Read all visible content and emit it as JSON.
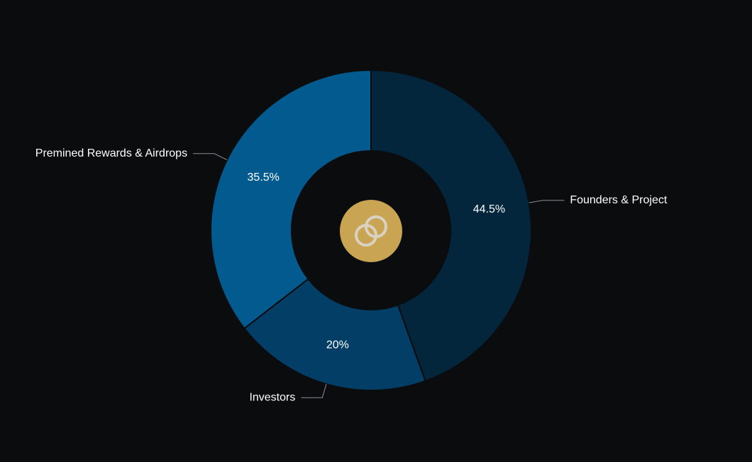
{
  "chart_data": {
    "type": "pie",
    "categories": [
      "Founders & Project",
      "Investors",
      "Premined Rewards & Airdrops"
    ],
    "values": [
      44.5,
      20,
      35.5
    ],
    "value_labels": [
      "44.5%",
      "20%",
      "35.5%"
    ],
    "colors": [
      "#03263d",
      "#033e66",
      "#035a8e"
    ]
  }
}
